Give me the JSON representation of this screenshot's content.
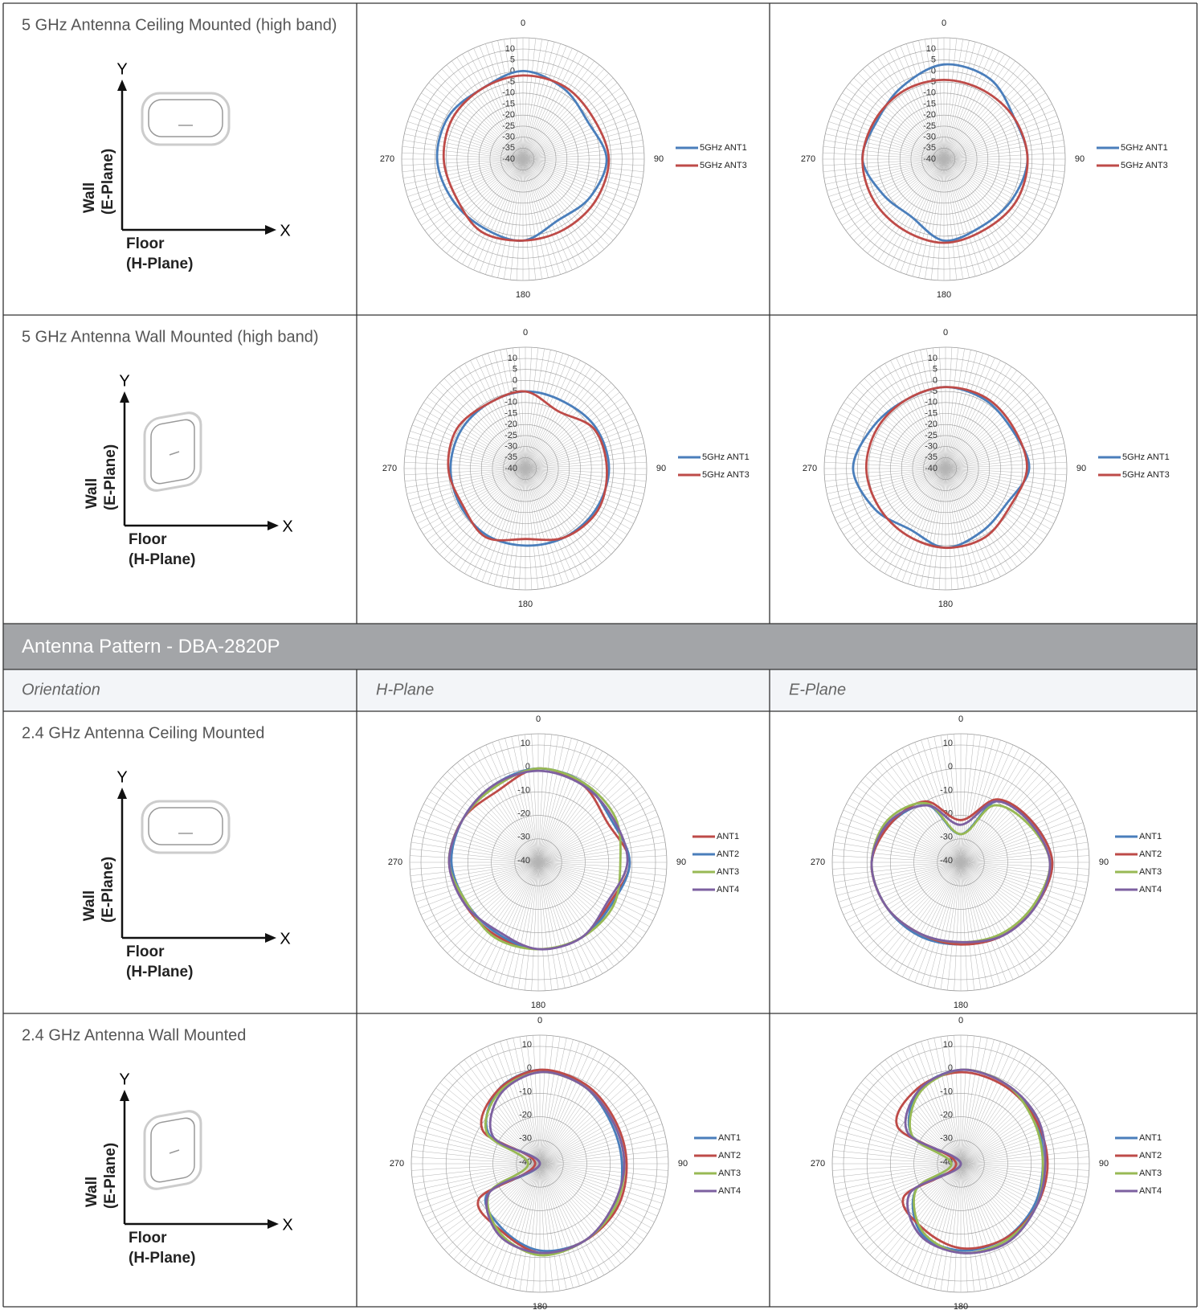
{
  "table": {
    "rows": [
      {
        "label": "5 GHz Antenna Ceiling Mounted (high band)",
        "diagram": {
          "y": "Y",
          "x": "X",
          "wall": "Wall",
          "e_plane": "(E-Plane)",
          "floor": "Floor",
          "h_plane": "(H-Plane)"
        }
      },
      {
        "label": "5 GHz Antenna Wall Mounted (high band)",
        "diagram": {
          "y": "Y",
          "x": "X",
          "wall": "Wall",
          "e_plane": "(E-Plane)",
          "floor": "Floor",
          "h_plane": "(H-Plane)"
        }
      },
      {
        "label": "2.4 GHz Antenna Ceiling Mounted",
        "diagram": {
          "y": "Y",
          "x": "X",
          "wall": "Wall",
          "e_plane": "(E-Plane)",
          "floor": "Floor",
          "h_plane": "(H-Plane)"
        }
      },
      {
        "label": "2.4 GHz Antenna Wall Mounted",
        "diagram": {
          "y": "Y",
          "x": "X",
          "wall": "Wall",
          "e_plane": "(E-Plane)",
          "floor": "Floor",
          "h_plane": "(H-Plane)"
        }
      }
    ]
  },
  "section": {
    "title": "Antenna Pattern - DBA-2820P",
    "headers": [
      "Orientation",
      "H-Plane",
      "E-Plane"
    ]
  },
  "chart_data": [
    {
      "type": "polar",
      "theta": [
        0,
        30,
        60,
        90,
        120,
        150,
        180,
        210,
        240,
        270,
        300,
        330
      ],
      "rlim": [
        -40,
        10
      ],
      "rticks": [
        10,
        5,
        0,
        -5,
        -10,
        -15,
        -20,
        -25,
        -30,
        -35,
        -40
      ],
      "thetaticks": [
        0,
        90,
        180,
        270
      ],
      "series": [
        {
          "name": "5GHz ANT1",
          "color": "#4a7ebb",
          "values": [
            0,
            -3,
            -6,
            -2,
            -5,
            -8,
            -3,
            -4,
            -3,
            -1,
            -1,
            -3
          ]
        },
        {
          "name": "5GHz ANT3",
          "color": "#be4b48",
          "values": [
            -2,
            -2,
            -3,
            -1,
            -2,
            -3,
            -3,
            -2,
            -5,
            -4,
            -3,
            -3
          ]
        }
      ]
    },
    {
      "type": "polar",
      "theta": [
        0,
        30,
        60,
        90,
        120,
        150,
        180,
        210,
        240,
        270,
        300,
        330
      ],
      "rlim": [
        -40,
        10
      ],
      "rticks": [
        10,
        5,
        0,
        -5,
        -10,
        -15,
        -20,
        -25,
        -30,
        -35,
        -40
      ],
      "thetaticks": [
        0,
        90,
        180,
        270
      ],
      "series": [
        {
          "name": "5GHz ANT1",
          "color": "#4a7ebb",
          "values": [
            3,
            2,
            -3,
            -2,
            -4,
            -5,
            -3,
            -10,
            -8,
            -3,
            -5,
            -2
          ]
        },
        {
          "name": "5GHz ANT3",
          "color": "#be4b48",
          "values": [
            -4,
            -4,
            -3,
            -2,
            -2,
            -3,
            -2,
            -3,
            -3,
            -3,
            -4,
            -4
          ]
        }
      ]
    },
    {
      "type": "polar",
      "theta": [
        0,
        30,
        60,
        90,
        120,
        150,
        180,
        210,
        240,
        270,
        300,
        330
      ],
      "rlim": [
        -40,
        10
      ],
      "rticks": [
        10,
        5,
        0,
        -5,
        -10,
        -15,
        -20,
        -25,
        -30,
        -35,
        -40
      ],
      "thetaticks": [
        0,
        90,
        180,
        270
      ],
      "series": [
        {
          "name": "5GHz ANT1",
          "color": "#4a7ebb",
          "values": [
            -5,
            -5,
            -3,
            -2,
            -3,
            -4,
            -5,
            -5,
            -6,
            -6,
            -6,
            -6
          ]
        },
        {
          "name": "5GHz ANT3",
          "color": "#be4b48",
          "values": [
            -5,
            -10,
            -4,
            -3,
            -2,
            -4,
            -8,
            -4,
            -7,
            -5,
            -4,
            -6
          ]
        }
      ]
    },
    {
      "type": "polar",
      "theta": [
        0,
        30,
        60,
        90,
        120,
        150,
        180,
        210,
        240,
        270,
        300,
        330
      ],
      "rlim": [
        -40,
        10
      ],
      "rticks": [
        10,
        5,
        0,
        -5,
        -10,
        -15,
        -20,
        -25,
        -30,
        -35,
        -40
      ],
      "thetaticks": [
        0,
        90,
        180,
        270
      ],
      "series": [
        {
          "name": "5GHz ANT1",
          "color": "#4a7ebb",
          "values": [
            -3,
            -4,
            -5,
            -2,
            -8,
            -7,
            -4,
            -8,
            -3,
            2,
            -2,
            -4
          ]
        },
        {
          "name": "5GHz ANT3",
          "color": "#be4b48",
          "values": [
            -3,
            -3,
            -4,
            -3,
            -6,
            -4,
            -4,
            -5,
            -5,
            -4,
            -4,
            -4
          ]
        }
      ]
    },
    {
      "type": "polar",
      "theta": [
        0,
        30,
        60,
        90,
        120,
        150,
        180,
        210,
        240,
        270,
        300,
        330
      ],
      "rlim": [
        -40,
        10
      ],
      "rticks": [
        10,
        0,
        -10,
        -20,
        -30,
        -40
      ],
      "thetaticks": [
        0,
        90,
        180,
        270
      ],
      "series": [
        {
          "name": "ANT1",
          "color": "#be4b48",
          "values": [
            0,
            -2,
            -6,
            -1,
            -5,
            -3,
            -3,
            -4,
            -4,
            -2,
            -3,
            -5
          ]
        },
        {
          "name": "ANT2",
          "color": "#4a7ebb",
          "values": [
            0,
            -1,
            -4,
            -1,
            -4,
            -3,
            -3,
            -5,
            -5,
            -3,
            -3,
            -2
          ]
        },
        {
          "name": "ANT3",
          "color": "#98b954",
          "values": [
            0,
            -1,
            -2,
            -5,
            -3,
            -3,
            -3,
            -3,
            -5,
            -2,
            -3,
            -3
          ]
        },
        {
          "name": "ANT4",
          "color": "#7d60a0",
          "values": [
            -1,
            -2,
            -3,
            -2,
            -6,
            -3,
            -3,
            -6,
            -4,
            -2,
            -3,
            -2
          ]
        }
      ]
    },
    {
      "type": "polar",
      "theta": [
        0,
        30,
        60,
        90,
        120,
        150,
        180,
        210,
        240,
        270,
        300,
        330
      ],
      "rlim": [
        -40,
        10
      ],
      "rticks": [
        10,
        0,
        -10,
        -20,
        -30,
        -40
      ],
      "thetaticks": [
        0,
        90,
        180,
        270
      ],
      "series": [
        {
          "name": "ANT1",
          "color": "#4a7ebb",
          "values": [
            -28,
            -10,
            -5,
            -1,
            -3,
            -4,
            -5,
            -4,
            -3,
            -2,
            -6,
            -12
          ]
        },
        {
          "name": "ANT2",
          "color": "#be4b48",
          "values": [
            -22,
            -9,
            -5,
            -1,
            -3,
            -4,
            -5,
            -5,
            -3,
            -2,
            -6,
            -10
          ]
        },
        {
          "name": "ANT3",
          "color": "#98b954",
          "values": [
            -28,
            -12,
            -7,
            -2,
            -4,
            -5,
            -6,
            -5,
            -3,
            -2,
            -4,
            -11
          ]
        },
        {
          "name": "ANT4",
          "color": "#7d60a0",
          "values": [
            -24,
            -10,
            -6,
            -2,
            -3,
            -4,
            -6,
            -5,
            -3,
            -2,
            -5,
            -12
          ]
        }
      ]
    },
    {
      "type": "polar",
      "theta": [
        0,
        30,
        60,
        90,
        120,
        150,
        180,
        210,
        240,
        270,
        300,
        330
      ],
      "rlim": [
        -40,
        10
      ],
      "rticks": [
        10,
        0,
        -10,
        -20,
        -30,
        -40
      ],
      "thetaticks": [
        0,
        90,
        180,
        270
      ],
      "series": [
        {
          "name": "ANT1",
          "color": "#4a7ebb",
          "values": [
            0,
            -2,
            -5,
            -5,
            -3,
            -2,
            -3,
            -8,
            -14,
            -40,
            -15,
            -4
          ]
        },
        {
          "name": "ANT2",
          "color": "#be4b48",
          "values": [
            0,
            -1,
            -3,
            -3,
            -2,
            -2,
            -2,
            -7,
            -10,
            -38,
            -12,
            -4
          ]
        },
        {
          "name": "ANT3",
          "color": "#98b954",
          "values": [
            -1,
            -2,
            -4,
            -4,
            -3,
            -2,
            -1,
            -6,
            -15,
            -35,
            -14,
            -5
          ]
        },
        {
          "name": "ANT4",
          "color": "#7d60a0",
          "values": [
            -1,
            -2,
            -4,
            -4,
            -4,
            -2,
            -2,
            -5,
            -15,
            -40,
            -17,
            -6
          ]
        }
      ]
    },
    {
      "type": "polar",
      "theta": [
        0,
        30,
        60,
        90,
        120,
        150,
        180,
        210,
        240,
        270,
        300,
        330
      ],
      "rlim": [
        -40,
        10
      ],
      "rticks": [
        10,
        0,
        -10,
        -20,
        -30,
        -40
      ],
      "thetaticks": [
        0,
        90,
        180,
        270
      ],
      "series": [
        {
          "name": "ANT1",
          "color": "#4a7ebb",
          "values": [
            0,
            -1,
            -3,
            -5,
            -4,
            -3,
            -3,
            -6,
            -18,
            -40,
            -16,
            -4
          ]
        },
        {
          "name": "ANT2",
          "color": "#be4b48",
          "values": [
            -1,
            -2,
            -3,
            -3,
            -3,
            -3,
            -4,
            -8,
            -12,
            -38,
            -9,
            -3
          ]
        },
        {
          "name": "ANT3",
          "color": "#98b954",
          "values": [
            0,
            -1,
            -4,
            -5,
            -3,
            -2,
            -2,
            -7,
            -18,
            -36,
            -16,
            -5
          ]
        },
        {
          "name": "ANT4",
          "color": "#7d60a0",
          "values": [
            0,
            -1,
            -2,
            -4,
            -3,
            -1,
            -2,
            -5,
            -15,
            -40,
            -14,
            -4
          ]
        }
      ]
    }
  ]
}
